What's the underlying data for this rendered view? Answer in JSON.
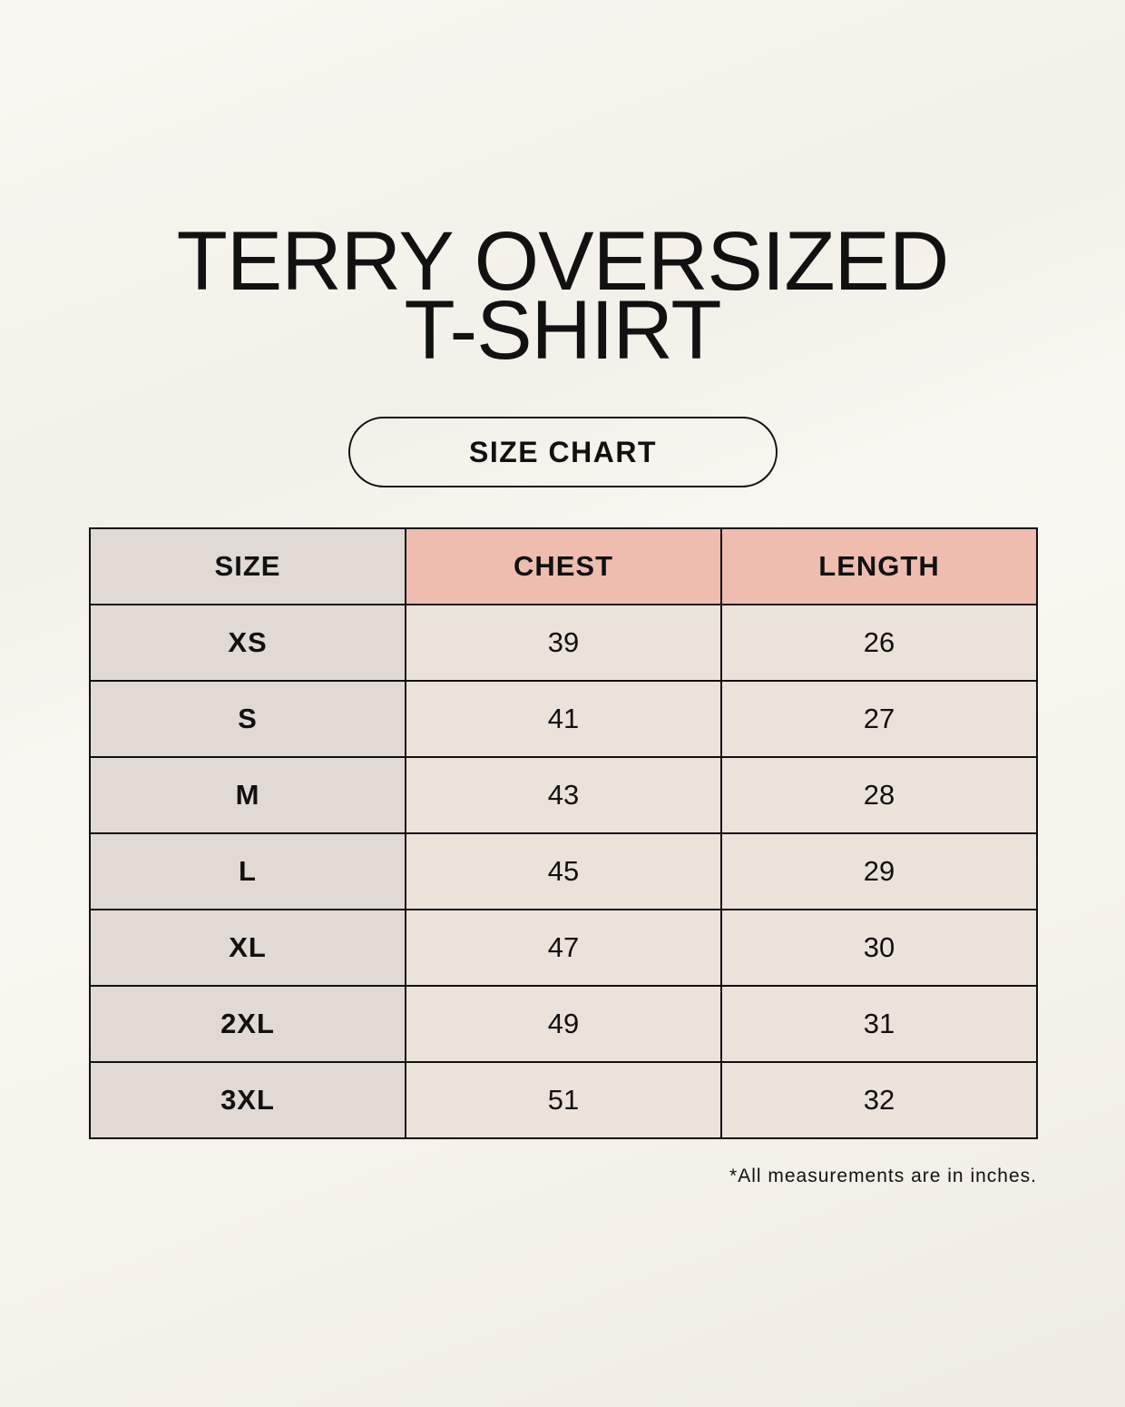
{
  "title_lines": [
    "TERRY OVERSIZED",
    "T-SHIRT"
  ],
  "badge": "SIZE CHART",
  "colors": {
    "size_column": "#e0d9d4",
    "header_accent": "#eebdb0",
    "cell": "#ebe3da"
  },
  "table": {
    "headers": [
      "SIZE",
      "CHEST",
      "LENGTH"
    ],
    "rows": [
      [
        "XS",
        "39",
        "26"
      ],
      [
        "S",
        "41",
        "27"
      ],
      [
        "M",
        "43",
        "28"
      ],
      [
        "L",
        "45",
        "29"
      ],
      [
        "XL",
        "47",
        "30"
      ],
      [
        "2XL",
        "49",
        "31"
      ],
      [
        "3XL",
        "51",
        "32"
      ]
    ]
  },
  "footnote": "*All measurements are in inches."
}
